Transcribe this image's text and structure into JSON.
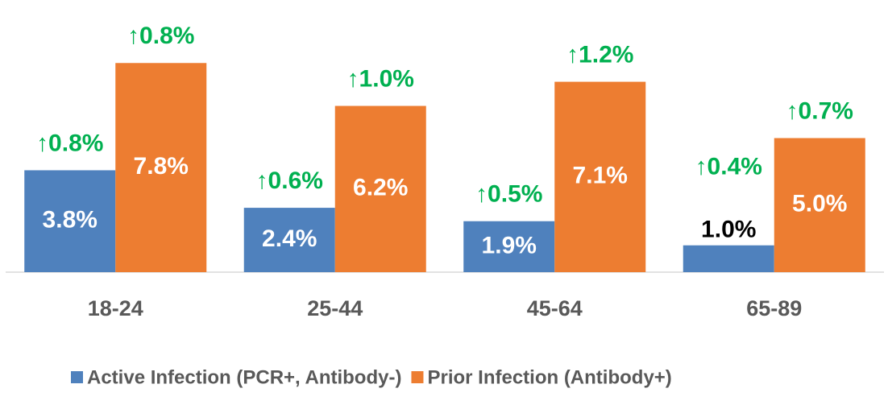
{
  "chart_data": {
    "type": "bar",
    "categories": [
      "18-24",
      "25-44",
      "45-64",
      "65-89"
    ],
    "series": [
      {
        "name": "Active Infection (PCR+, Antibody-)",
        "color": "#4f81bd",
        "values": [
          3.8,
          2.4,
          1.9,
          1.0
        ],
        "value_labels": [
          "3.8%",
          "2.4%",
          "1.9%",
          "1.0%"
        ],
        "annotations": [
          "↑0.8%",
          "↑0.6%",
          "↑0.5%",
          "↑0.4%"
        ]
      },
      {
        "name": "Prior Infection (Antibody+)",
        "color": "#ed7d31",
        "values": [
          7.8,
          6.2,
          7.1,
          5.0
        ],
        "value_labels": [
          "7.8%",
          "6.2%",
          "7.1%",
          "5.0%"
        ],
        "annotations": [
          "↑0.8%",
          "↑1.0%",
          "↑1.2%",
          "↑0.7%"
        ]
      }
    ],
    "ylim": [
      0,
      10
    ],
    "legend": "bottom",
    "annotation_color": "#00b050"
  }
}
